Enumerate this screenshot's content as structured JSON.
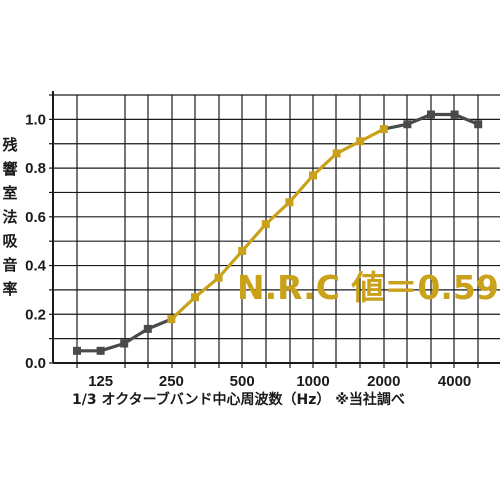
{
  "chart_data": {
    "type": "line",
    "xlabel": "1/3 オクターブバンド中心周波数（Hz） ※当社調べ",
    "ylabel": "残響室法吸音率",
    "x_tick_labels": [
      "125",
      "250",
      "500",
      "1000",
      "2000",
      "4000"
    ],
    "y_tick_labels": [
      "0.0",
      "0.2",
      "0.4",
      "0.6",
      "0.8",
      "1.0"
    ],
    "ylim": [
      0,
      1.1
    ],
    "grid": true,
    "annotation": "N.R.C 値＝0.59",
    "x": [
      "100",
      "125",
      "160",
      "200",
      "250",
      "315",
      "400",
      "500",
      "630",
      "800",
      "1000",
      "1250",
      "1600",
      "2000",
      "2500",
      "3150",
      "4000",
      "5000"
    ],
    "series": [
      {
        "values": [
          0.05,
          0.05,
          0.08,
          0.14,
          0.18,
          0.27,
          0.35,
          0.46,
          0.57,
          0.66,
          0.77,
          0.86,
          0.91,
          0.96,
          0.98,
          1.02,
          1.02,
          0.98
        ],
        "highlight_range": [
          4,
          13
        ]
      }
    ],
    "colors": {
      "base_line": "#4a4a4a",
      "highlight_line": "#c9a21a",
      "annotation": "#c9a21a"
    }
  }
}
